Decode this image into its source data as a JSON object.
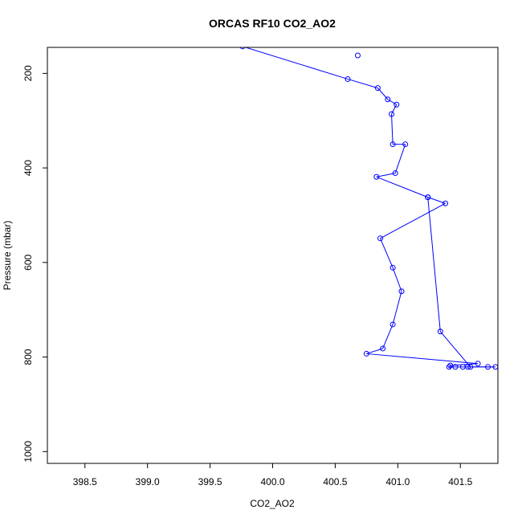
{
  "chart_data": {
    "type": "line",
    "title": "ORCAS RF10 CO2_AO2",
    "xlabel": "CO2_AO2",
    "ylabel": "Pressure (mbar)",
    "xlim": [
      398.2,
      401.8
    ],
    "ylim": [
      1025,
      145
    ],
    "y_reversed": true,
    "x_ticks": [
      398.5,
      399.0,
      399.5,
      400.0,
      400.5,
      401.0,
      401.5
    ],
    "x_tick_labels": [
      "398.5",
      "399.0",
      "399.5",
      "400.0",
      "400.5",
      "401.0",
      "401.5"
    ],
    "y_ticks": [
      200,
      400,
      600,
      800,
      1000
    ],
    "y_tick_labels": [
      "200",
      "400",
      "600",
      "800",
      "1000"
    ],
    "line_color": "#0000ff",
    "marker": "open-circle",
    "series": [
      {
        "points": [
          {
            "x": 399.76,
            "y": 143
          },
          {
            "x": 400.6,
            "y": 212
          },
          {
            "x": 400.84,
            "y": 231
          },
          {
            "x": 400.92,
            "y": 255
          },
          {
            "x": 400.99,
            "y": 266
          },
          {
            "x": 400.95,
            "y": 286
          },
          {
            "x": 400.96,
            "y": 350
          },
          {
            "x": 401.06,
            "y": 350
          },
          {
            "x": 400.98,
            "y": 411
          },
          {
            "x": 400.83,
            "y": 419
          },
          {
            "x": 401.24,
            "y": 462
          },
          {
            "x": 401.38,
            "y": 475
          },
          {
            "x": 400.86,
            "y": 549
          },
          {
            "x": 400.96,
            "y": 611
          },
          {
            "x": 401.03,
            "y": 661
          },
          {
            "x": 400.96,
            "y": 731
          },
          {
            "x": 400.88,
            "y": 782
          },
          {
            "x": 400.75,
            "y": 793
          },
          {
            "x": 401.64,
            "y": 814
          },
          {
            "x": 401.42,
            "y": 818
          },
          {
            "x": 401.41,
            "y": 821
          },
          {
            "x": 401.46,
            "y": 821
          },
          {
            "x": 401.52,
            "y": 821
          },
          {
            "x": 401.56,
            "y": 821
          },
          {
            "x": 401.72,
            "y": 821
          },
          {
            "x": 401.78,
            "y": 821
          },
          {
            "x": 401.58,
            "y": 821
          },
          {
            "x": 401.34,
            "y": 746
          },
          {
            "x": 401.24,
            "y": 462
          }
        ],
        "extra_markers": [
          {
            "x": 400.68,
            "y": 162
          }
        ]
      }
    ]
  }
}
